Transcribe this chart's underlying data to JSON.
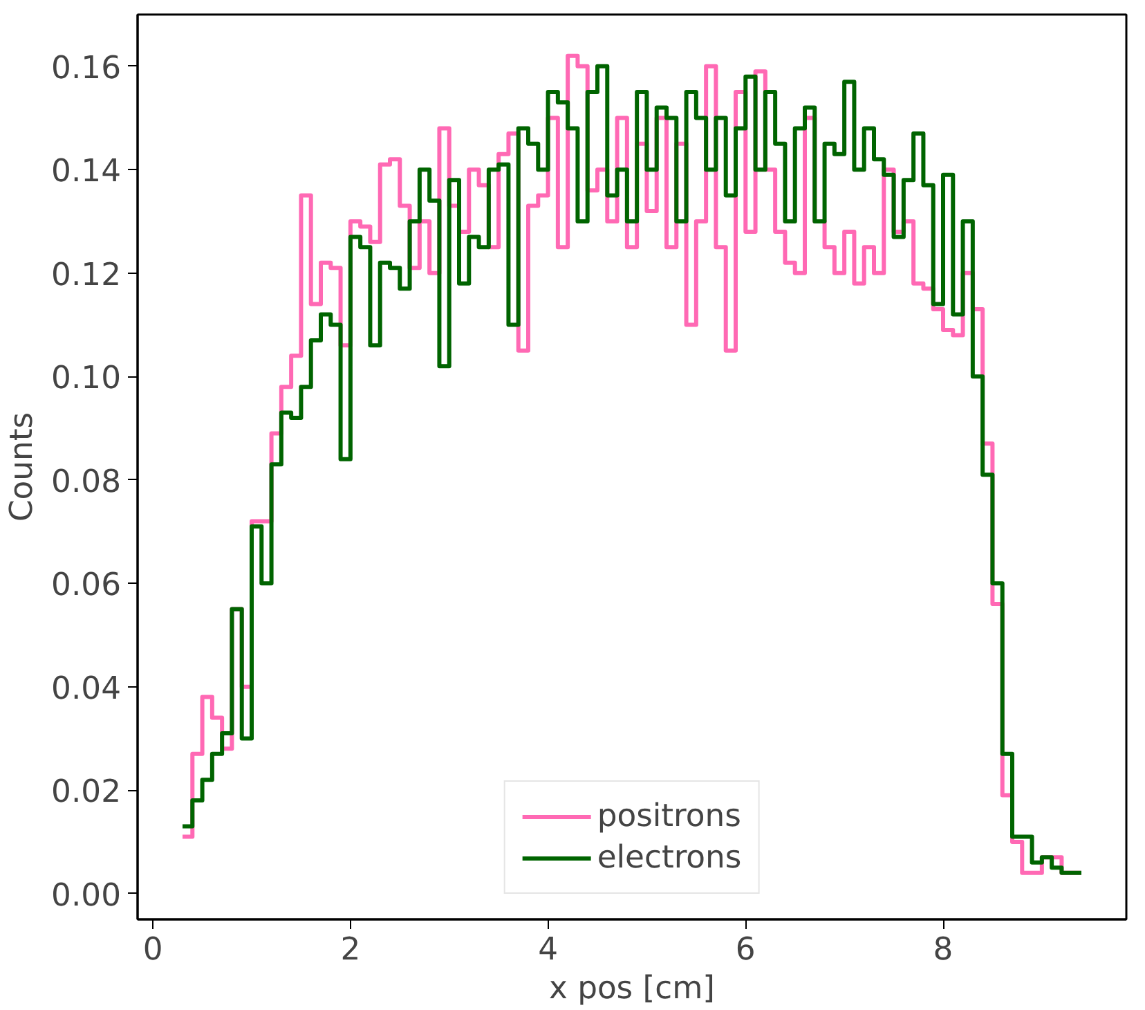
{
  "chart_data": {
    "type": "histogram",
    "xlabel": "x pos [cm]",
    "ylabel": "Counts",
    "bins": [
      0.3,
      0.4,
      0.5,
      0.6,
      0.7,
      0.8,
      0.9,
      1.0,
      1.1,
      1.2,
      1.3,
      1.4,
      1.5,
      1.6,
      1.7,
      1.8,
      1.9,
      2.0,
      2.1,
      2.2,
      2.3,
      2.4,
      2.5,
      2.6,
      2.7,
      2.8,
      2.9,
      3.0,
      3.1,
      3.2,
      3.3,
      3.4,
      3.5,
      3.6,
      3.7,
      3.8,
      3.9,
      4.0,
      4.1,
      4.2,
      4.3,
      4.4,
      4.5,
      4.6,
      4.7,
      4.8,
      4.9,
      5.0,
      5.1,
      5.2,
      5.3,
      5.4,
      5.5,
      5.6,
      5.7,
      5.8,
      5.9,
      6.0,
      6.1,
      6.2,
      6.3,
      6.4,
      6.5,
      6.6,
      6.7,
      6.8,
      6.9,
      7.0,
      7.1,
      7.2,
      7.3,
      7.4,
      7.5,
      7.6,
      7.7,
      7.8,
      7.9,
      8.0,
      8.1,
      8.2,
      8.3,
      8.4,
      8.5,
      8.6,
      8.7,
      8.8,
      8.9,
      9.0,
      9.1,
      9.2,
      9.3,
      9.4
    ],
    "series": [
      {
        "name": "positrons",
        "color": "#ff69b4",
        "values": [
          0.011,
          0.027,
          0.038,
          0.034,
          0.028,
          0.055,
          0.04,
          0.072,
          0.072,
          0.089,
          0.098,
          0.104,
          0.135,
          0.114,
          0.122,
          0.121,
          0.106,
          0.13,
          0.129,
          0.126,
          0.141,
          0.142,
          0.133,
          0.121,
          0.13,
          0.12,
          0.148,
          0.133,
          0.128,
          0.14,
          0.137,
          0.125,
          0.143,
          0.147,
          0.105,
          0.133,
          0.135,
          0.15,
          0.125,
          0.162,
          0.16,
          0.136,
          0.14,
          0.13,
          0.15,
          0.125,
          0.145,
          0.132,
          0.15,
          0.125,
          0.145,
          0.11,
          0.13,
          0.16,
          0.125,
          0.105,
          0.155,
          0.128,
          0.159,
          0.14,
          0.128,
          0.122,
          0.12,
          0.15,
          0.13,
          0.125,
          0.12,
          0.128,
          0.118,
          0.125,
          0.12,
          0.14,
          0.128,
          0.13,
          0.118,
          0.117,
          0.113,
          0.109,
          0.108,
          0.12,
          0.113,
          0.087,
          0.056,
          0.019,
          0.01,
          0.004,
          0.004,
          0.007,
          0.007,
          0.004,
          0.004
        ]
      },
      {
        "name": "electrons",
        "color": "#006400",
        "values": [
          0.013,
          0.018,
          0.022,
          0.027,
          0.031,
          0.055,
          0.03,
          0.071,
          0.06,
          0.083,
          0.093,
          0.092,
          0.098,
          0.107,
          0.112,
          0.11,
          0.084,
          0.127,
          0.125,
          0.106,
          0.122,
          0.121,
          0.117,
          0.13,
          0.14,
          0.134,
          0.102,
          0.138,
          0.118,
          0.127,
          0.125,
          0.14,
          0.141,
          0.11,
          0.148,
          0.145,
          0.14,
          0.155,
          0.153,
          0.148,
          0.13,
          0.155,
          0.16,
          0.135,
          0.14,
          0.13,
          0.155,
          0.14,
          0.152,
          0.15,
          0.13,
          0.155,
          0.15,
          0.14,
          0.15,
          0.135,
          0.148,
          0.158,
          0.14,
          0.155,
          0.145,
          0.13,
          0.148,
          0.152,
          0.13,
          0.145,
          0.143,
          0.157,
          0.14,
          0.148,
          0.142,
          0.139,
          0.127,
          0.138,
          0.147,
          0.137,
          0.114,
          0.139,
          0.112,
          0.13,
          0.1,
          0.081,
          0.06,
          0.027,
          0.011,
          0.011,
          0.006,
          0.007,
          0.005,
          0.004,
          0.004
        ]
      }
    ],
    "xlim": [
      -0.155,
      9.855
    ],
    "ylim": [
      -0.005,
      0.17
    ],
    "xticks": [
      {
        "value": 0,
        "label": "0"
      },
      {
        "value": 2,
        "label": "2"
      },
      {
        "value": 4,
        "label": "4"
      },
      {
        "value": 6,
        "label": "6"
      },
      {
        "value": 8,
        "label": "8"
      }
    ],
    "yticks": [
      {
        "value": 0,
        "label": "0.00"
      },
      {
        "value": 0.02,
        "label": "0.02"
      },
      {
        "value": 0.04,
        "label": "0.04"
      },
      {
        "value": 0.06,
        "label": "0.06"
      },
      {
        "value": 0.08,
        "label": "0.08"
      },
      {
        "value": 0.1,
        "label": "0.10"
      },
      {
        "value": 0.12,
        "label": "0.12"
      },
      {
        "value": 0.14,
        "label": "0.14"
      },
      {
        "value": 0.16,
        "label": "0.16"
      }
    ],
    "grid": false,
    "legend": "bottom",
    "line_style": "solid"
  }
}
